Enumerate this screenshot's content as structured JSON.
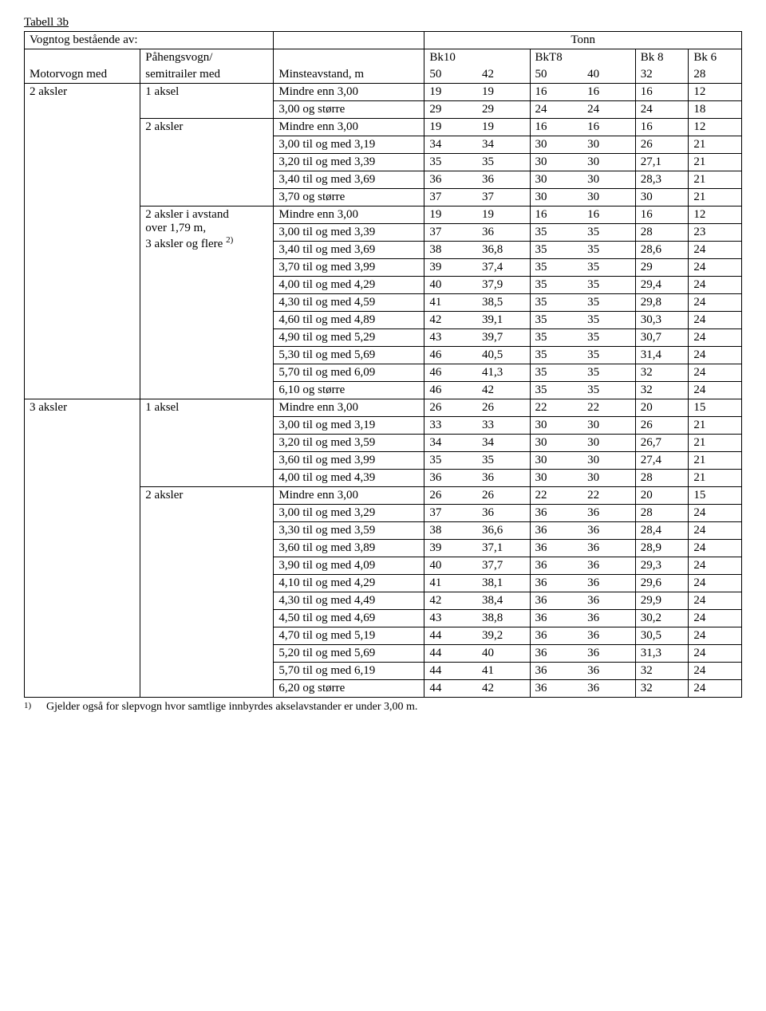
{
  "title": "Tabell 3b",
  "header": {
    "row1_col1": "Vogntog bestående av:",
    "row1_tonn": "Tonn",
    "row2_mv": "Motorvogn med",
    "row2_pv_l1": "Påhengsvogn/",
    "row2_pv_l2": "semitrailer med",
    "row2_ma": "Minsteavstand, m",
    "bk10": "Bk10",
    "bkt8": "BkT8",
    "bk8": "Bk 8",
    "bk6": "Bk 6",
    "c50a": "50",
    "c42": "42",
    "c50b": "50",
    "c40": "40",
    "c32": "32",
    "c28": "28"
  },
  "groups": [
    {
      "mv": "2 aksler",
      "blocks": [
        {
          "pv": "1 aksel",
          "rows": [
            {
              "label": "Mindre enn 3,00",
              "v": [
                "19",
                "19",
                "16",
                "16",
                "16",
                "12"
              ]
            },
            {
              "label": "3,00 og større",
              "v": [
                "29",
                "29",
                "24",
                "24",
                "24",
                "18"
              ]
            }
          ]
        },
        {
          "pv": "2 aksler",
          "rows": [
            {
              "label": "Mindre enn 3,00",
              "v": [
                "19",
                "19",
                "16",
                "16",
                "16",
                "12"
              ]
            },
            {
              "label": "3,00 til og med 3,19",
              "v": [
                "34",
                "34",
                "30",
                "30",
                "26",
                "21"
              ]
            },
            {
              "label": "3,20 til og med 3,39",
              "v": [
                "35",
                "35",
                "30",
                "30",
                "27,1",
                "21"
              ]
            },
            {
              "label": "3,40 til og med 3,69",
              "v": [
                "36",
                "36",
                "30",
                "30",
                "28,3",
                "21"
              ]
            },
            {
              "label": "3,70 og større",
              "v": [
                "37",
                "37",
                "30",
                "30",
                "30",
                "21"
              ]
            }
          ]
        },
        {
          "pv_lines": [
            "2 aksler i avstand",
            "over 1,79 m,",
            "3 aksler og flere "
          ],
          "pv_sup": "2)",
          "rows": [
            {
              "label": "Mindre enn 3,00",
              "v": [
                "19",
                "19",
                "16",
                "16",
                "16",
                "12"
              ]
            },
            {
              "label": "3,00 til og med 3,39",
              "v": [
                "37",
                "36",
                "35",
                "35",
                "28",
                "23"
              ]
            },
            {
              "label": "3,40 til og med 3,69",
              "v": [
                "38",
                "36,8",
                "35",
                "35",
                "28,6",
                "24"
              ]
            },
            {
              "label": "3,70 til og med 3,99",
              "v": [
                "39",
                "37,4",
                "35",
                "35",
                "29",
                "24"
              ]
            },
            {
              "label": "4,00 til og med 4,29",
              "v": [
                "40",
                "37,9",
                "35",
                "35",
                "29,4",
                "24"
              ]
            },
            {
              "label": "4,30 til og med 4,59",
              "v": [
                "41",
                "38,5",
                "35",
                "35",
                "29,8",
                "24"
              ]
            },
            {
              "label": "4,60 til og med 4,89",
              "v": [
                "42",
                "39,1",
                "35",
                "35",
                "30,3",
                "24"
              ]
            },
            {
              "label": "4,90 til og med 5,29",
              "v": [
                "43",
                "39,7",
                "35",
                "35",
                "30,7",
                "24"
              ]
            },
            {
              "label": "5,30 til og med 5,69",
              "v": [
                "46",
                "40,5",
                "35",
                "35",
                "31,4",
                "24"
              ]
            },
            {
              "label": "5,70 til og med 6,09",
              "v": [
                "46",
                "41,3",
                "35",
                "35",
                "32",
                "24"
              ]
            },
            {
              "label": "6,10 og større",
              "v": [
                "46",
                "42",
                "35",
                "35",
                "32",
                "24"
              ]
            }
          ]
        }
      ]
    },
    {
      "mv": "3 aksler",
      "blocks": [
        {
          "pv": "1 aksel",
          "rows": [
            {
              "label": "Mindre enn 3,00",
              "v": [
                "26",
                "26",
                "22",
                "22",
                "20",
                "15"
              ]
            },
            {
              "label": "3,00 til og med 3,19",
              "v": [
                "33",
                "33",
                "30",
                "30",
                "26",
                "21"
              ]
            },
            {
              "label": "3,20 til og med 3,59",
              "v": [
                "34",
                "34",
                "30",
                "30",
                "26,7",
                "21"
              ]
            },
            {
              "label": "3,60 til og med 3,99",
              "v": [
                "35",
                "35",
                "30",
                "30",
                "27,4",
                "21"
              ]
            },
            {
              "label": "4,00 til og med 4,39",
              "v": [
                "36",
                "36",
                "30",
                "30",
                "28",
                "21"
              ]
            }
          ]
        },
        {
          "pv": "2 aksler",
          "rows": [
            {
              "label": "Mindre enn 3,00",
              "v": [
                "26",
                "26",
                "22",
                "22",
                "20",
                "15"
              ]
            },
            {
              "label": "3,00 til og med 3,29",
              "v": [
                "37",
                "36",
                "36",
                "36",
                "28",
                "24"
              ]
            },
            {
              "label": "3,30 til og med 3,59",
              "v": [
                "38",
                "36,6",
                "36",
                "36",
                "28,4",
                "24"
              ]
            },
            {
              "label": "3,60 til og med 3,89",
              "v": [
                "39",
                "37,1",
                "36",
                "36",
                "28,9",
                "24"
              ]
            },
            {
              "label": "3,90 til og med 4,09",
              "v": [
                "40",
                "37,7",
                "36",
                "36",
                "29,3",
                "24"
              ]
            },
            {
              "label": "4,10 til og med 4,29",
              "v": [
                "41",
                "38,1",
                "36",
                "36",
                "29,6",
                "24"
              ]
            },
            {
              "label": "4,30 til og med 4,49",
              "v": [
                "42",
                "38,4",
                "36",
                "36",
                "29,9",
                "24"
              ]
            },
            {
              "label": "4,50 til og med 4,69",
              "v": [
                "43",
                "38,8",
                "36",
                "36",
                "30,2",
                "24"
              ]
            },
            {
              "label": "4,70 til og med 5,19",
              "v": [
                "44",
                "39,2",
                "36",
                "36",
                "30,5",
                "24"
              ]
            },
            {
              "label": "5,20 til og med 5,69",
              "v": [
                "44",
                "40",
                "36",
                "36",
                "31,3",
                "24"
              ]
            },
            {
              "label": "5,70 til og med 6,19",
              "v": [
                "44",
                "41",
                "36",
                "36",
                "32",
                "24"
              ]
            },
            {
              "label": "6,20 og større",
              "v": [
                "44",
                "42",
                "36",
                "36",
                "32",
                "24"
              ]
            }
          ]
        }
      ]
    }
  ],
  "footnote": {
    "num": "1)",
    "text": "Gjelder også for slepvogn hvor samtlige innbyrdes akselavstander er under 3,00 m."
  }
}
